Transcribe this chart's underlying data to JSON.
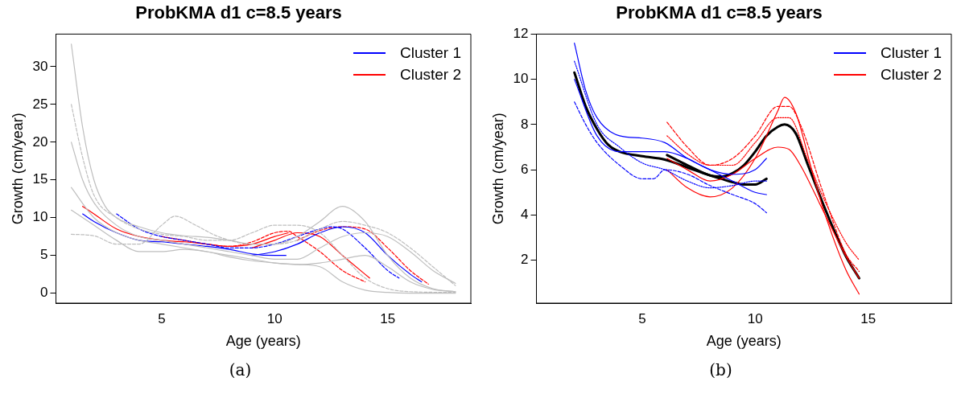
{
  "chart_data": [
    {
      "type": "line",
      "title": "ProbKMA d1 c=8.5 years",
      "xlabel": "Age (years)",
      "ylabel": "Growth (cm/year)",
      "annotations": [
        "(a)"
      ],
      "xlim": [
        0.32,
        18.68
      ],
      "xticks": [
        5,
        10,
        15
      ],
      "ylim": [
        -1.32,
        34.32
      ],
      "yticks": [
        0,
        5,
        10,
        15,
        20,
        25,
        30
      ],
      "grid": false,
      "legend": "top right",
      "marker": "none",
      "series": [
        {
          "color": "#bebebe",
          "line_style": "solid",
          "x": [
            1,
            1.5,
            2,
            2.5,
            3,
            4,
            5,
            6,
            7,
            8,
            9,
            10,
            11,
            12,
            13,
            14,
            15,
            16,
            17,
            18
          ],
          "values": [
            33,
            22,
            15,
            11.5,
            10,
            8.8,
            8,
            7.6,
            7.4,
            7,
            6.5,
            6.5,
            7.5,
            9.5,
            11.5,
            9.5,
            5,
            2,
            0.6,
            0.2
          ]
        },
        {
          "color": "#bebebe",
          "line_style": "solid",
          "x": [
            1,
            1.5,
            2,
            3,
            4,
            5,
            6,
            7,
            8,
            9,
            10,
            11,
            12,
            13,
            14,
            15,
            16,
            17,
            18
          ],
          "values": [
            20,
            15,
            12,
            9,
            7.5,
            7,
            6.5,
            6,
            5.5,
            5,
            4.5,
            4.5,
            6,
            7.5,
            8,
            7.5,
            5.5,
            3,
            1.3
          ]
        },
        {
          "color": "#bebebe",
          "line_style": "solid",
          "x": [
            1,
            2,
            3,
            4,
            5,
            6,
            7,
            8,
            9,
            10,
            11,
            12,
            13,
            14,
            15,
            16,
            18
          ],
          "values": [
            14,
            10,
            8,
            7,
            6.5,
            6,
            5.5,
            5,
            4.5,
            4,
            3.8,
            3.5,
            1.5,
            0.4,
            0.1,
            0,
            0
          ]
        },
        {
          "color": "#bebebe",
          "line_style": "dashed",
          "x": [
            1,
            2,
            3,
            4,
            5,
            5.6,
            6.5,
            7.5,
            9,
            10,
            11,
            12,
            13,
            14,
            15,
            16,
            17,
            18
          ],
          "values": [
            7.8,
            7.6,
            6.5,
            6.5,
            9,
            10.2,
            9,
            7.5,
            6.5,
            6.5,
            7,
            8.5,
            9.5,
            9,
            8,
            6,
            3.5,
            1
          ]
        },
        {
          "color": "#bebebe",
          "line_style": "solid",
          "x": [
            1,
            2,
            3,
            4,
            5,
            6,
            7,
            8,
            9,
            10,
            11,
            12,
            13,
            14,
            15,
            16,
            17,
            18
          ],
          "values": [
            11,
            9,
            7,
            5.5,
            5.5,
            5.8,
            5.5,
            4.8,
            4.3,
            4,
            3.8,
            4,
            4.5,
            5,
            3.5,
            1.5,
            0.5,
            0.2
          ]
        },
        {
          "color": "#bebebe",
          "line_style": "dashed",
          "x": [
            1,
            1.5,
            2,
            3,
            4,
            5,
            6,
            7,
            8,
            9,
            10,
            11,
            12,
            13,
            14,
            15,
            16,
            18
          ],
          "values": [
            25,
            18,
            13,
            10,
            8.5,
            7.8,
            7.5,
            7,
            7,
            8,
            9,
            9,
            8,
            5,
            2,
            0.6,
            0.2,
            0.1
          ]
        },
        {
          "name": "Cluster 1",
          "color": "#0000ff",
          "line_style": "solid",
          "x": [
            1.5,
            2,
            3,
            4,
            5,
            6,
            7,
            8,
            9,
            10,
            10.5
          ],
          "values": [
            10.5,
            9.5,
            8,
            7,
            6.8,
            6.5,
            6.2,
            5.8,
            5.2,
            5,
            5
          ]
        },
        {
          "color": "#0000ff",
          "line_style": "dashed",
          "x": [
            3,
            4,
            5,
            6,
            7,
            8,
            9,
            10,
            11,
            12,
            12.5,
            13,
            14,
            15,
            15.5
          ],
          "values": [
            10.5,
            8.5,
            7.5,
            7,
            6.5,
            6,
            6,
            6.5,
            7.5,
            8.5,
            8.8,
            8.5,
            6,
            3,
            2
          ]
        },
        {
          "color": "#0000ff",
          "line_style": "solid",
          "x": [
            9,
            10,
            11,
            12,
            13,
            14,
            15,
            16,
            16.5
          ],
          "values": [
            5,
            5.5,
            6.5,
            8,
            8.8,
            8,
            5,
            2.5,
            1.5
          ]
        },
        {
          "name": "Cluster 2",
          "color": "#ff0000",
          "line_style": "solid",
          "x": [
            1.5,
            2,
            3,
            4,
            5,
            6,
            7,
            8,
            9,
            10,
            10.6
          ],
          "values": [
            11.5,
            10.5,
            8.5,
            7.5,
            7,
            6.8,
            6.5,
            6.2,
            6.5,
            7.5,
            8
          ]
        },
        {
          "color": "#ff0000",
          "line_style": "dashed",
          "x": [
            5,
            6,
            7,
            8,
            9,
            10,
            10.6,
            11,
            12,
            13,
            14
          ],
          "values": [
            7.5,
            7,
            6.5,
            6.2,
            6.8,
            8,
            8.2,
            7.5,
            5.5,
            3,
            1.5
          ]
        },
        {
          "color": "#ff0000",
          "line_style": "solid",
          "x": [
            9,
            10,
            11,
            12,
            13,
            14,
            14.2
          ],
          "values": [
            6,
            7,
            8,
            7.5,
            5,
            2.5,
            2
          ]
        },
        {
          "color": "#ff0000",
          "line_style": "dashed",
          "x": [
            11,
            12,
            13,
            14,
            15,
            16,
            16.8
          ],
          "values": [
            7,
            8.3,
            8.8,
            8.5,
            6,
            3,
            1.2
          ]
        }
      ]
    },
    {
      "type": "line",
      "title": "ProbKMA d1 c=8.5 years",
      "xlabel": "Age (years)",
      "ylabel": "Growth (cm/year)",
      "annotations": [
        "(b)"
      ],
      "xlim": [
        0.32,
        18.68
      ],
      "xticks": [
        5,
        10,
        15
      ],
      "ylim": [
        0.1,
        12
      ],
      "yticks": [
        2,
        4,
        6,
        8,
        10,
        12
      ],
      "grid": false,
      "legend": "top right",
      "marker": "none",
      "series": [
        {
          "name": "Cluster 1",
          "color": "#0000ff",
          "line_style": "solid",
          "x": [
            2,
            2.5,
            3,
            4,
            5,
            6,
            7,
            8,
            9,
            10,
            10.5
          ],
          "values": [
            11.6,
            9.5,
            8.3,
            7.5,
            7.4,
            7.2,
            6.5,
            6,
            5.5,
            5,
            4.9
          ]
        },
        {
          "color": "#0000ff",
          "line_style": "dashed",
          "x": [
            2,
            2.5,
            3,
            4,
            5,
            5.5,
            6,
            7,
            8,
            9,
            10,
            10.5
          ],
          "values": [
            9,
            8,
            7.2,
            6.2,
            5.6,
            5.6,
            6,
            5.8,
            5.3,
            4.9,
            4.5,
            4.1
          ]
        },
        {
          "color": "#0000ff",
          "line_style": "solid",
          "x": [
            2,
            3,
            4,
            5,
            6,
            7,
            8,
            9,
            10,
            10.5
          ],
          "values": [
            10,
            7.5,
            6.8,
            6.8,
            6.8,
            6.5,
            6,
            5.8,
            6,
            6.5
          ]
        },
        {
          "color": "#0000ff",
          "line_style": "dotted",
          "x": [
            2,
            3,
            4,
            5,
            6,
            7,
            8,
            9,
            10,
            10.5
          ],
          "values": [
            10.8,
            8,
            7,
            6.3,
            6,
            5.5,
            5.2,
            5.3,
            5.5,
            5.5
          ]
        },
        {
          "name": "Cluster 2",
          "color": "#ff0000",
          "line_style": "solid",
          "x": [
            6.1,
            7,
            8,
            9,
            10,
            11,
            11.3,
            11.8,
            12.5,
            13,
            14,
            14.6
          ],
          "values": [
            6,
            5.2,
            4.8,
            5.2,
            6.5,
            8.6,
            9.2,
            8.5,
            6,
            4.3,
            1.6,
            0.5
          ]
        },
        {
          "color": "#ff0000",
          "line_style": "dashed",
          "x": [
            6.1,
            7,
            8,
            9,
            10,
            11,
            11.5,
            12,
            13,
            14,
            14.6
          ],
          "values": [
            8.1,
            7,
            6.2,
            6.5,
            7.5,
            8.8,
            8.8,
            8,
            5,
            2.3,
            1.5
          ]
        },
        {
          "color": "#ff0000",
          "line_style": "solid",
          "x": [
            6.1,
            7,
            8,
            9,
            10,
            11,
            11.5,
            12,
            13,
            14,
            14.6
          ],
          "values": [
            6.5,
            6,
            5.5,
            5.8,
            6.5,
            7,
            6.9,
            6.2,
            4.2,
            2.2,
            1.2
          ]
        },
        {
          "color": "#ff0000",
          "line_style": "dotted",
          "x": [
            6.1,
            7,
            8,
            9,
            10,
            11,
            11.5,
            12.3,
            13,
            14,
            14.6
          ],
          "values": [
            7.5,
            6.7,
            6.2,
            6.2,
            7.2,
            8.3,
            8.3,
            6.5,
            4.8,
            2.8,
            2
          ]
        },
        {
          "color": "#000000",
          "line_style": "solid",
          "x": [
            2,
            2.5,
            3,
            3.5,
            4,
            5,
            6,
            7,
            8,
            8.5,
            9,
            9.5,
            10,
            10.5
          ],
          "values": [
            10.3,
            8.8,
            7.8,
            7.1,
            6.8,
            6.6,
            6.45,
            6.1,
            5.75,
            5.6,
            5.45,
            5.35,
            5.35,
            5.6
          ]
        },
        {
          "color": "#000000",
          "line_style": "solid",
          "x": [
            6.1,
            7,
            8,
            8.5,
            9,
            9.5,
            10,
            10.5,
            11,
            11.3,
            11.8,
            12.3,
            13,
            13.5,
            14,
            14.6
          ],
          "values": [
            6.65,
            6.2,
            5.75,
            5.7,
            5.85,
            6.2,
            6.8,
            7.5,
            7.9,
            8,
            7.6,
            6.3,
            4.5,
            3.3,
            2.2,
            1.2
          ]
        }
      ]
    }
  ]
}
